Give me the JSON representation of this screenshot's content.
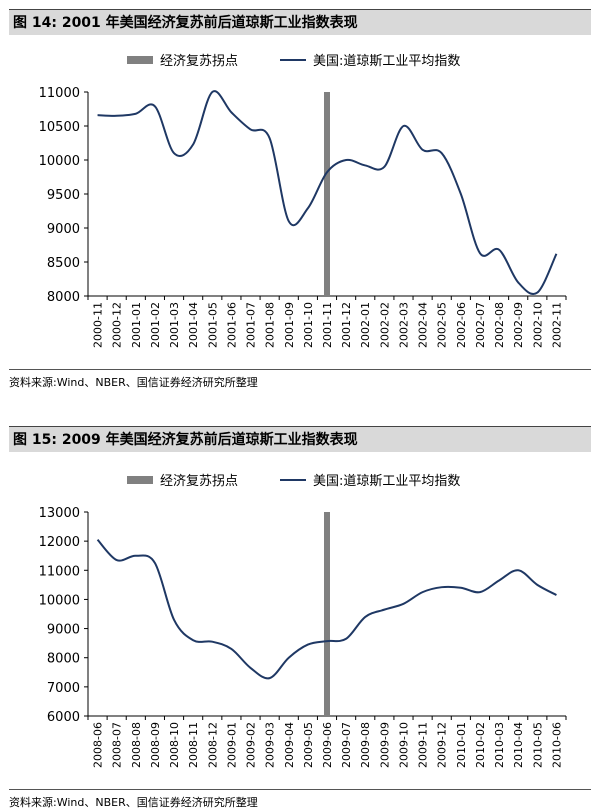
{
  "chart_data": [
    {
      "type": "line",
      "title": "图 14:  2001 年美国经济复苏前后道琼斯工业指数表现",
      "source": "资料来源:Wind、NBER、国信证券经济研究所整理",
      "legend": [
        "经济复苏拐点",
        "美国:道琼斯工业平均指数"
      ],
      "legend_position": "top",
      "ylim": [
        8000,
        11000
      ],
      "yticks": [
        8000,
        8500,
        9000,
        9500,
        10000,
        10500,
        11000
      ],
      "categories": [
        "2000-11",
        "2000-12",
        "2001-01",
        "2001-02",
        "2001-03",
        "2001-04",
        "2001-05",
        "2001-06",
        "2001-07",
        "2001-08",
        "2001-09",
        "2001-10",
        "2001-11",
        "2001-12",
        "2002-01",
        "2002-02",
        "2002-03",
        "2002-04",
        "2002-05",
        "2002-06",
        "2002-07",
        "2002-08",
        "2002-09",
        "2002-10",
        "2002-11"
      ],
      "turning_point": "2001-11",
      "series": [
        {
          "name": "美国:道琼斯工业平均指数",
          "color": "#1f3864",
          "values": [
            10660,
            10650,
            10680,
            10790,
            10100,
            10230,
            11000,
            10700,
            10450,
            10320,
            9100,
            9290,
            9820,
            10000,
            9920,
            9900,
            10500,
            10150,
            10100,
            9500,
            8630,
            8680,
            8200,
            8050,
            8620
          ]
        }
      ],
      "turning_color": "#808080",
      "line_color": "#1f3864"
    },
    {
      "type": "line",
      "title": "图 15:  2009 年美国经济复苏前后道琼斯工业指数表现",
      "source": "资料来源:Wind、NBER、国信证券经济研究所整理",
      "legend": [
        "经济复苏拐点",
        "美国:道琼斯工业平均指数"
      ],
      "legend_position": "top",
      "ylim": [
        6000,
        13000
      ],
      "yticks": [
        6000,
        7000,
        8000,
        9000,
        10000,
        11000,
        12000,
        13000
      ],
      "categories": [
        "2008-06",
        "2008-07",
        "2008-08",
        "2008-09",
        "2008-10",
        "2008-11",
        "2008-12",
        "2009-01",
        "2009-02",
        "2009-03",
        "2009-04",
        "2009-05",
        "2009-06",
        "2009-07",
        "2009-08",
        "2009-09",
        "2009-10",
        "2009-11",
        "2009-12",
        "2010-01",
        "2010-02",
        "2010-03",
        "2010-04",
        "2010-05",
        "2010-06"
      ],
      "turning_point": "2009-06",
      "series": [
        {
          "name": "美国:道琼斯工业平均指数",
          "color": "#1f3864",
          "values": [
            12050,
            11350,
            11500,
            11250,
            9300,
            8600,
            8550,
            8300,
            7650,
            7300,
            8000,
            8450,
            8570,
            8650,
            9400,
            9650,
            9850,
            10250,
            10420,
            10400,
            10250,
            10650,
            11000,
            10500,
            10150
          ]
        }
      ],
      "turning_color": "#808080",
      "line_color": "#1f3864"
    }
  ]
}
